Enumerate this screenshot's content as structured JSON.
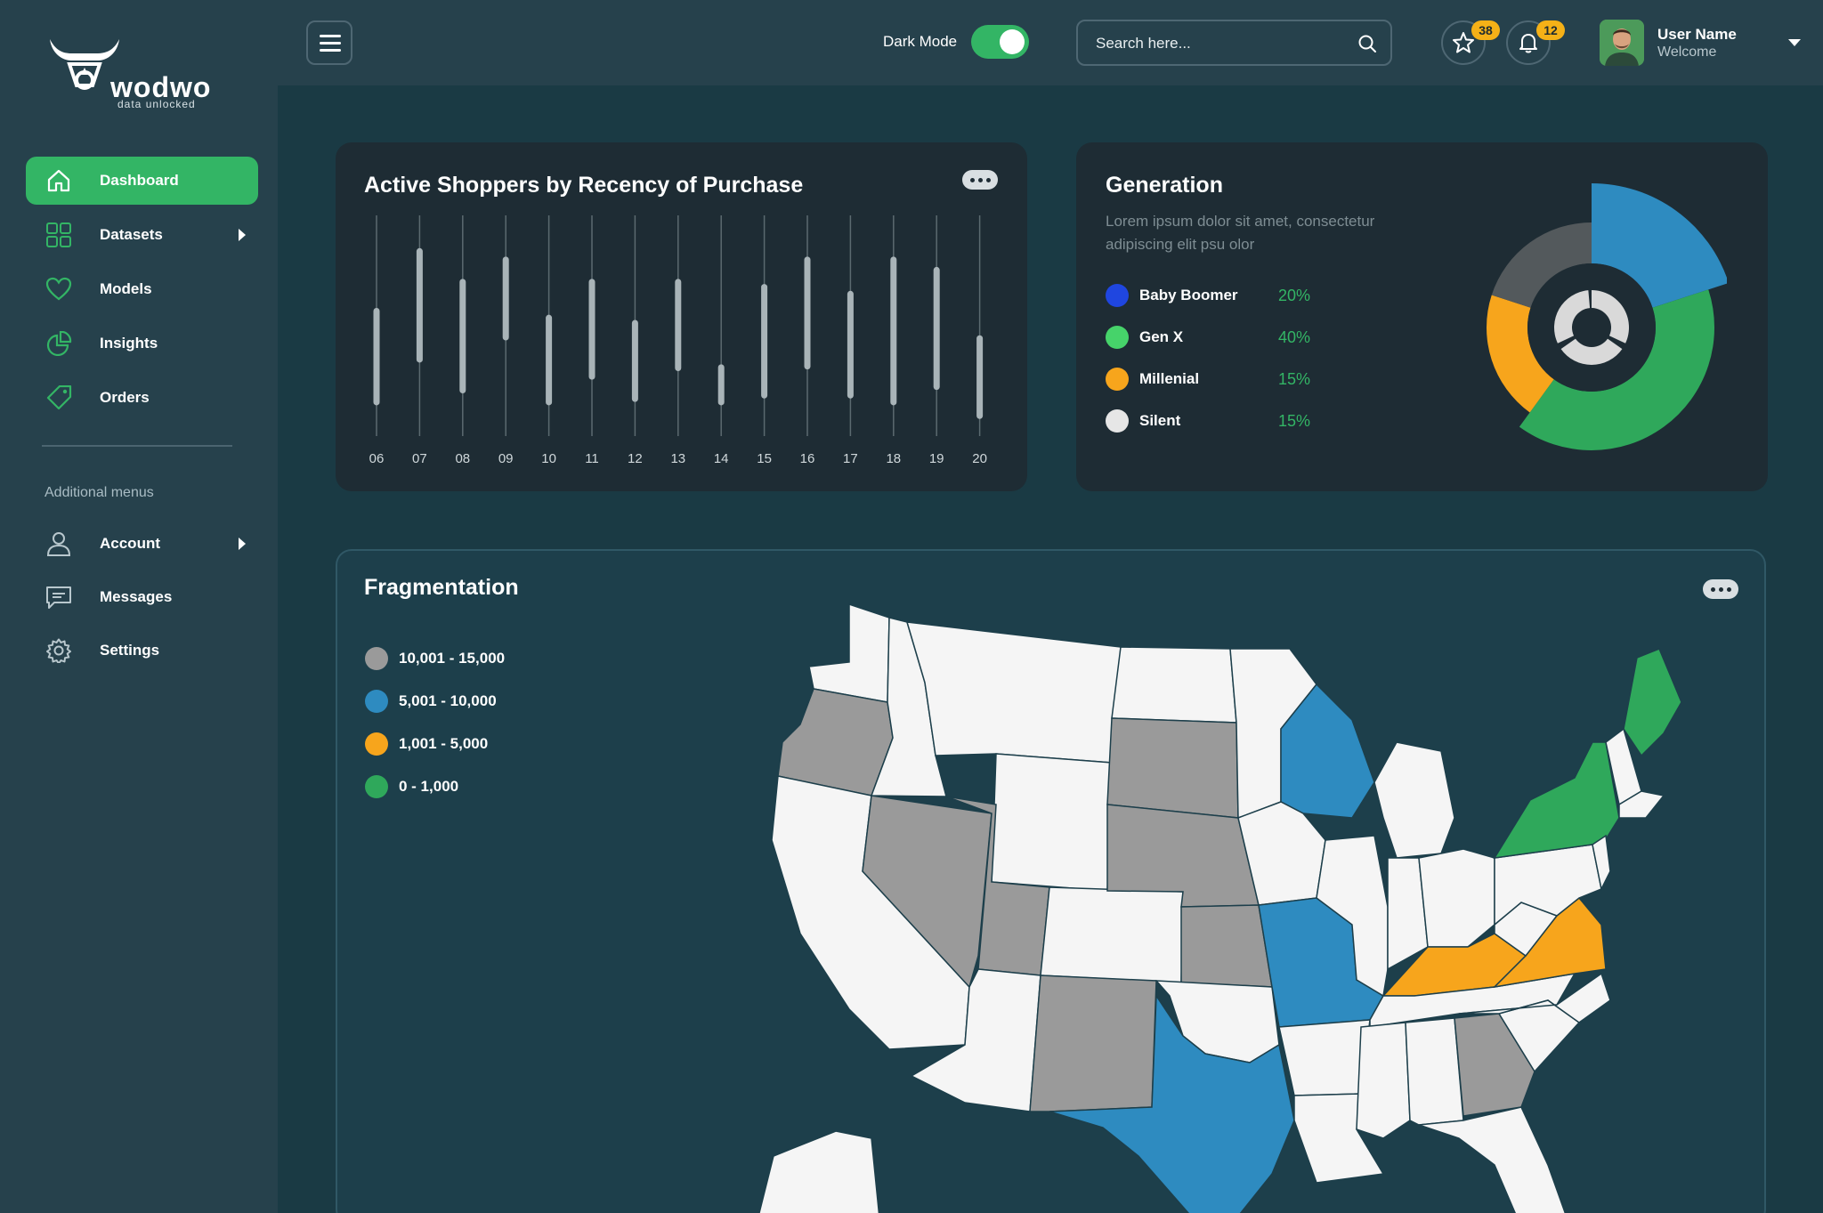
{
  "brand": {
    "name": "wodwo",
    "tagline": "data unlocked"
  },
  "sidebar": {
    "items": [
      {
        "label": "Dashboard",
        "icon": "home-icon",
        "active": true
      },
      {
        "label": "Datasets",
        "icon": "grid-icon",
        "has_submenu": true
      },
      {
        "label": "Models",
        "icon": "heart-icon"
      },
      {
        "label": "Insights",
        "icon": "pie-chart-icon"
      },
      {
        "label": "Orders",
        "icon": "tag-icon"
      }
    ],
    "additional_heading": "Additional menus",
    "additional": [
      {
        "label": "Account",
        "icon": "user-icon",
        "has_submenu": true
      },
      {
        "label": "Messages",
        "icon": "message-icon"
      },
      {
        "label": "Settings",
        "icon": "gear-icon"
      }
    ]
  },
  "header": {
    "dark_mode_label": "Dark Mode",
    "dark_mode_on": true,
    "search_placeholder": "Search here...",
    "favorites_count": "38",
    "notifications_count": "12",
    "user_name": "User Name",
    "user_subtitle": "Welcome"
  },
  "colors": {
    "accent_green": "#33b565",
    "badge": "#f5b117",
    "blue": "#2e8bc0",
    "orange": "#f7a51c",
    "gray": "#9a9a9a"
  },
  "chart_data": [
    {
      "type": "bar",
      "title": "Active Shoppers by Recency of Purchase",
      "categories": [
        "06",
        "07",
        "08",
        "09",
        "10",
        "11",
        "12",
        "13",
        "14",
        "15",
        "16",
        "17",
        "18",
        "19",
        "20"
      ],
      "series": [
        {
          "low": [
            1.8,
            4.3,
            2.5,
            5.6,
            1.8,
            3.3,
            2.0,
            3.8,
            1.8,
            2.2,
            3.9,
            2.2,
            1.8,
            2.7,
            1.0
          ],
          "high": [
            7.5,
            11.0,
            9.2,
            10.5,
            7.1,
            9.2,
            6.8,
            9.2,
            4.2,
            8.9,
            10.5,
            8.5,
            10.5,
            9.9,
            5.9
          ]
        }
      ],
      "ylim": [
        0,
        12.5
      ]
    },
    {
      "type": "pie",
      "title": "Generation",
      "slices": [
        {
          "label": "Baby Boomer",
          "value": 20,
          "color": "#1f46e0"
        },
        {
          "label": "Gen X",
          "value": 40,
          "color": "#46d36a"
        },
        {
          "label": "Millenial",
          "value": 15,
          "color": "#f7a51c"
        },
        {
          "label": "Silent",
          "value": 15,
          "color": "#e6e6e6"
        }
      ],
      "pct_labels": [
        "20%",
        "40%",
        "15%",
        "15%"
      ]
    },
    {
      "type": "heatmap",
      "title": "Fragmentation",
      "legend": [
        {
          "label": "10,001 - 15,000",
          "color": "#9a9a9a"
        },
        {
          "label": "5,001 - 10,000",
          "color": "#2e8bc0"
        },
        {
          "label": "1,001 - 5,000",
          "color": "#f7a51c"
        },
        {
          "label": "0 - 1,000",
          "color": "#2fa85b"
        }
      ]
    }
  ],
  "description": "Lorem ipsum dolor sit amet, consectetur adipiscing elit psu olor"
}
